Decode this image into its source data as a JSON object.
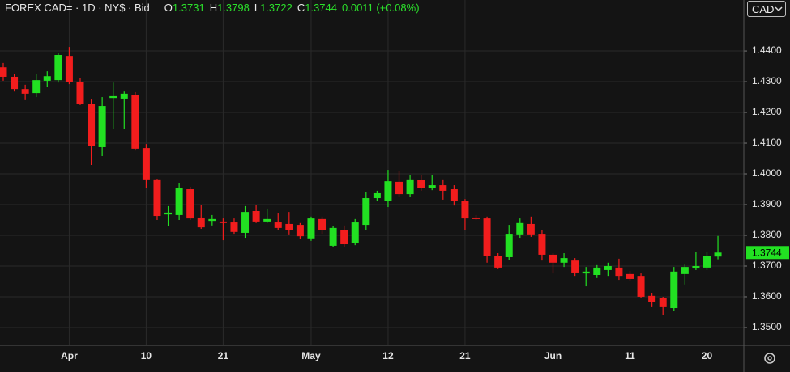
{
  "header": {
    "symbol": "FOREX CAD= · 1D · NY$ · Bid",
    "quote": [
      {
        "label": "O",
        "value": "1.3731"
      },
      {
        "label": "H",
        "value": "1.3798"
      },
      {
        "label": "L",
        "value": "1.3722"
      },
      {
        "label": "C",
        "value": "1.3744"
      }
    ],
    "change": "0.0011 (+0.08%)",
    "currency": "CAD"
  },
  "chart_data": {
    "type": "candlestick",
    "up_color": "#22e022",
    "down_color": "#f21d1d",
    "grid": true,
    "categories": [
      null,
      null,
      null,
      null,
      null,
      null,
      "Apr",
      null,
      null,
      null,
      null,
      null,
      null,
      "10",
      null,
      null,
      null,
      null,
      null,
      null,
      "21",
      null,
      null,
      null,
      null,
      null,
      null,
      null,
      "May",
      null,
      null,
      null,
      null,
      null,
      null,
      "12",
      null,
      null,
      null,
      null,
      null,
      null,
      "21",
      null,
      null,
      null,
      null,
      null,
      null,
      null,
      "Jun",
      null,
      null,
      null,
      null,
      null,
      null,
      "11",
      null,
      null,
      null,
      null,
      null,
      null,
      "20",
      null
    ],
    "open": [
      1.4347,
      1.4316,
      1.4276,
      1.4263,
      1.4303,
      1.4305,
      1.4384,
      1.43,
      1.4229,
      1.4087,
      1.4247,
      1.4245,
      1.4258,
      1.4084,
      1.3982,
      1.3868,
      1.3866,
      1.395,
      1.3858,
      1.3847,
      1.3845,
      1.3842,
      1.3808,
      1.3879,
      1.3845,
      1.3842,
      1.3837,
      1.3834,
      1.379,
      1.3853,
      1.3766,
      1.3818,
      1.3776,
      1.3834,
      1.3921,
      1.3913,
      1.3974,
      1.3934,
      1.3979,
      1.3955,
      1.3963,
      1.395,
      1.3913,
      1.3858,
      1.3855,
      1.3734,
      1.3729,
      1.3803,
      1.3837,
      1.3805,
      1.3737,
      1.3711,
      1.3718,
      1.3676,
      1.3671,
      1.3687,
      1.3695,
      1.3674,
      1.3668,
      1.3603,
      1.3595,
      1.3563,
      1.3674,
      1.3692,
      1.3695,
      1.3731
    ],
    "high": [
      1.4361,
      1.4324,
      1.429,
      1.4324,
      1.4334,
      1.4392,
      1.4413,
      1.4313,
      1.4242,
      1.425,
      1.4297,
      1.4268,
      1.4266,
      1.4097,
      1.3984,
      1.3895,
      1.3971,
      1.3958,
      1.39,
      1.3866,
      1.3855,
      1.3855,
      1.3895,
      1.39,
      1.3887,
      1.3871,
      1.3876,
      1.384,
      1.3861,
      1.3861,
      1.3829,
      1.3832,
      1.3853,
      1.394,
      1.3945,
      1.4013,
      1.4008,
      1.3997,
      1.3995,
      1.3997,
      1.3982,
      1.3963,
      1.3918,
      1.3866,
      1.3861,
      1.3742,
      1.3834,
      1.3855,
      1.3861,
      1.3816,
      1.3742,
      1.3742,
      1.3726,
      1.3697,
      1.3703,
      1.3711,
      1.3724,
      1.3684,
      1.3676,
      1.3613,
      1.36,
      1.3697,
      1.3705,
      1.3745,
      1.3745,
      1.3798
    ],
    "low": [
      1.4303,
      1.4268,
      1.424,
      1.425,
      1.4282,
      1.4297,
      1.4292,
      1.4224,
      1.4029,
      1.4058,
      1.4145,
      1.4145,
      1.4076,
      1.3955,
      1.385,
      1.3829,
      1.385,
      1.385,
      1.3821,
      1.3832,
      1.3784,
      1.3805,
      1.3792,
      1.384,
      1.384,
      1.3818,
      1.3803,
      1.3787,
      1.3782,
      1.3805,
      1.3761,
      1.3761,
      1.3768,
      1.3816,
      1.3911,
      1.3892,
      1.3926,
      1.3924,
      1.3945,
      1.3947,
      1.3916,
      1.3897,
      1.3818,
      1.385,
      1.3711,
      1.369,
      1.3721,
      1.3792,
      1.3795,
      1.3718,
      1.3676,
      1.3697,
      1.3668,
      1.3634,
      1.3661,
      1.3668,
      1.3655,
      1.3653,
      1.3595,
      1.3566,
      1.354,
      1.3555,
      1.364,
      1.3687,
      1.3687,
      1.3722
    ],
    "close": [
      1.4316,
      1.4276,
      1.4261,
      1.4305,
      1.4318,
      1.4387,
      1.43,
      1.4229,
      1.4092,
      1.4221,
      1.4253,
      1.4261,
      1.4082,
      1.3982,
      1.3863,
      1.3874,
      1.3953,
      1.3855,
      1.3826,
      1.3853,
      1.384,
      1.3811,
      1.3876,
      1.3845,
      1.3853,
      1.3824,
      1.3816,
      1.3797,
      1.3855,
      1.3816,
      1.3824,
      1.3771,
      1.3842,
      1.3921,
      1.3937,
      1.3976,
      1.3934,
      1.3982,
      1.3953,
      1.3963,
      1.3945,
      1.3913,
      1.3855,
      1.3853,
      1.3732,
      1.3695,
      1.3805,
      1.384,
      1.3803,
      1.3737,
      1.3711,
      1.3726,
      1.3679,
      1.3682,
      1.3695,
      1.37,
      1.3668,
      1.3658,
      1.36,
      1.3584,
      1.3566,
      1.3682,
      1.3697,
      1.37,
      1.3732,
      1.3744
    ],
    "ylim": [
      1.3442,
      1.4566
    ],
    "yticks": [
      {
        "value": 1.35,
        "label": "1.3500"
      },
      {
        "value": 1.36,
        "label": "1.3600"
      },
      {
        "value": 1.37,
        "label": "1.3700"
      },
      {
        "value": 1.38,
        "label": "1.3800"
      },
      {
        "value": 1.39,
        "label": "1.3900"
      },
      {
        "value": 1.4,
        "label": "1.4000"
      },
      {
        "value": 1.41,
        "label": "1.4100"
      },
      {
        "value": 1.42,
        "label": "1.4200"
      },
      {
        "value": 1.43,
        "label": "1.4300"
      },
      {
        "value": 1.44,
        "label": "1.4400"
      }
    ]
  }
}
